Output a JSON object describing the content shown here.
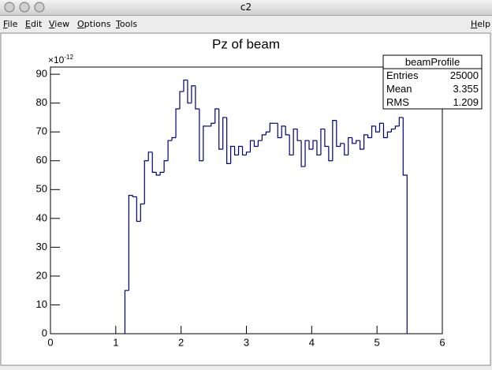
{
  "window": {
    "title": "c2",
    "menu": [
      "File",
      "Edit",
      "View",
      "Options",
      "Tools"
    ],
    "help": "Help"
  },
  "chart_data": {
    "type": "histogram",
    "title": "Pz of beam",
    "color": "#00007f",
    "y_exponent_base": "×10",
    "y_exponent_power": "-12",
    "bins": [
      1.14,
      1.2,
      1.26,
      1.32,
      1.38,
      1.44,
      1.5,
      1.56,
      1.62,
      1.68,
      1.74,
      1.8,
      1.86,
      1.92,
      1.98,
      2.04,
      2.1,
      2.16,
      2.22,
      2.28,
      2.34,
      2.4,
      2.46,
      2.52,
      2.58,
      2.64,
      2.7,
      2.76,
      2.82,
      2.88,
      2.94,
      3,
      3.06,
      3.12,
      3.18,
      3.24,
      3.3,
      3.36,
      3.42,
      3.48,
      3.54,
      3.6,
      3.66,
      3.72,
      3.78,
      3.84,
      3.9,
      3.96,
      4.02,
      4.08,
      4.14,
      4.2,
      4.26,
      4.32,
      4.38,
      4.44,
      4.5,
      4.56,
      4.62,
      4.68,
      4.74,
      4.8,
      4.86,
      4.92,
      4.98,
      5.04,
      5.1,
      5.16,
      5.22,
      5.28,
      5.34,
      5.4,
      5.46
    ],
    "values": [
      15,
      48,
      47.5,
      39,
      45,
      60,
      63,
      56,
      55,
      56,
      60,
      67,
      68,
      78,
      84,
      88,
      80,
      86,
      78,
      60,
      72,
      72,
      73,
      78,
      64,
      75,
      59,
      65,
      62,
      65,
      62,
      63,
      67,
      65,
      67,
      69,
      70,
      73,
      73,
      68,
      72,
      69,
      62,
      71,
      67,
      58,
      67,
      64,
      67,
      62,
      71,
      65,
      60,
      74,
      65,
      66,
      62,
      68,
      66,
      67,
      64,
      69,
      68,
      72,
      70,
      73,
      68,
      70,
      71,
      72,
      75,
      55
    ],
    "xlim": [
      0,
      6
    ],
    "xticks": [
      0,
      1,
      2,
      3,
      4,
      5,
      6
    ],
    "ylim": [
      0,
      92.5
    ],
    "yticks": [
      0,
      10,
      20,
      30,
      40,
      50,
      60,
      70,
      80,
      90
    ],
    "stats": {
      "title": "beamProfile",
      "rows": [
        {
          "label": "Entries",
          "value": 25000
        },
        {
          "label": "Mean",
          "value": 3.355
        },
        {
          "label": "RMS",
          "value": 1.209
        }
      ]
    }
  }
}
